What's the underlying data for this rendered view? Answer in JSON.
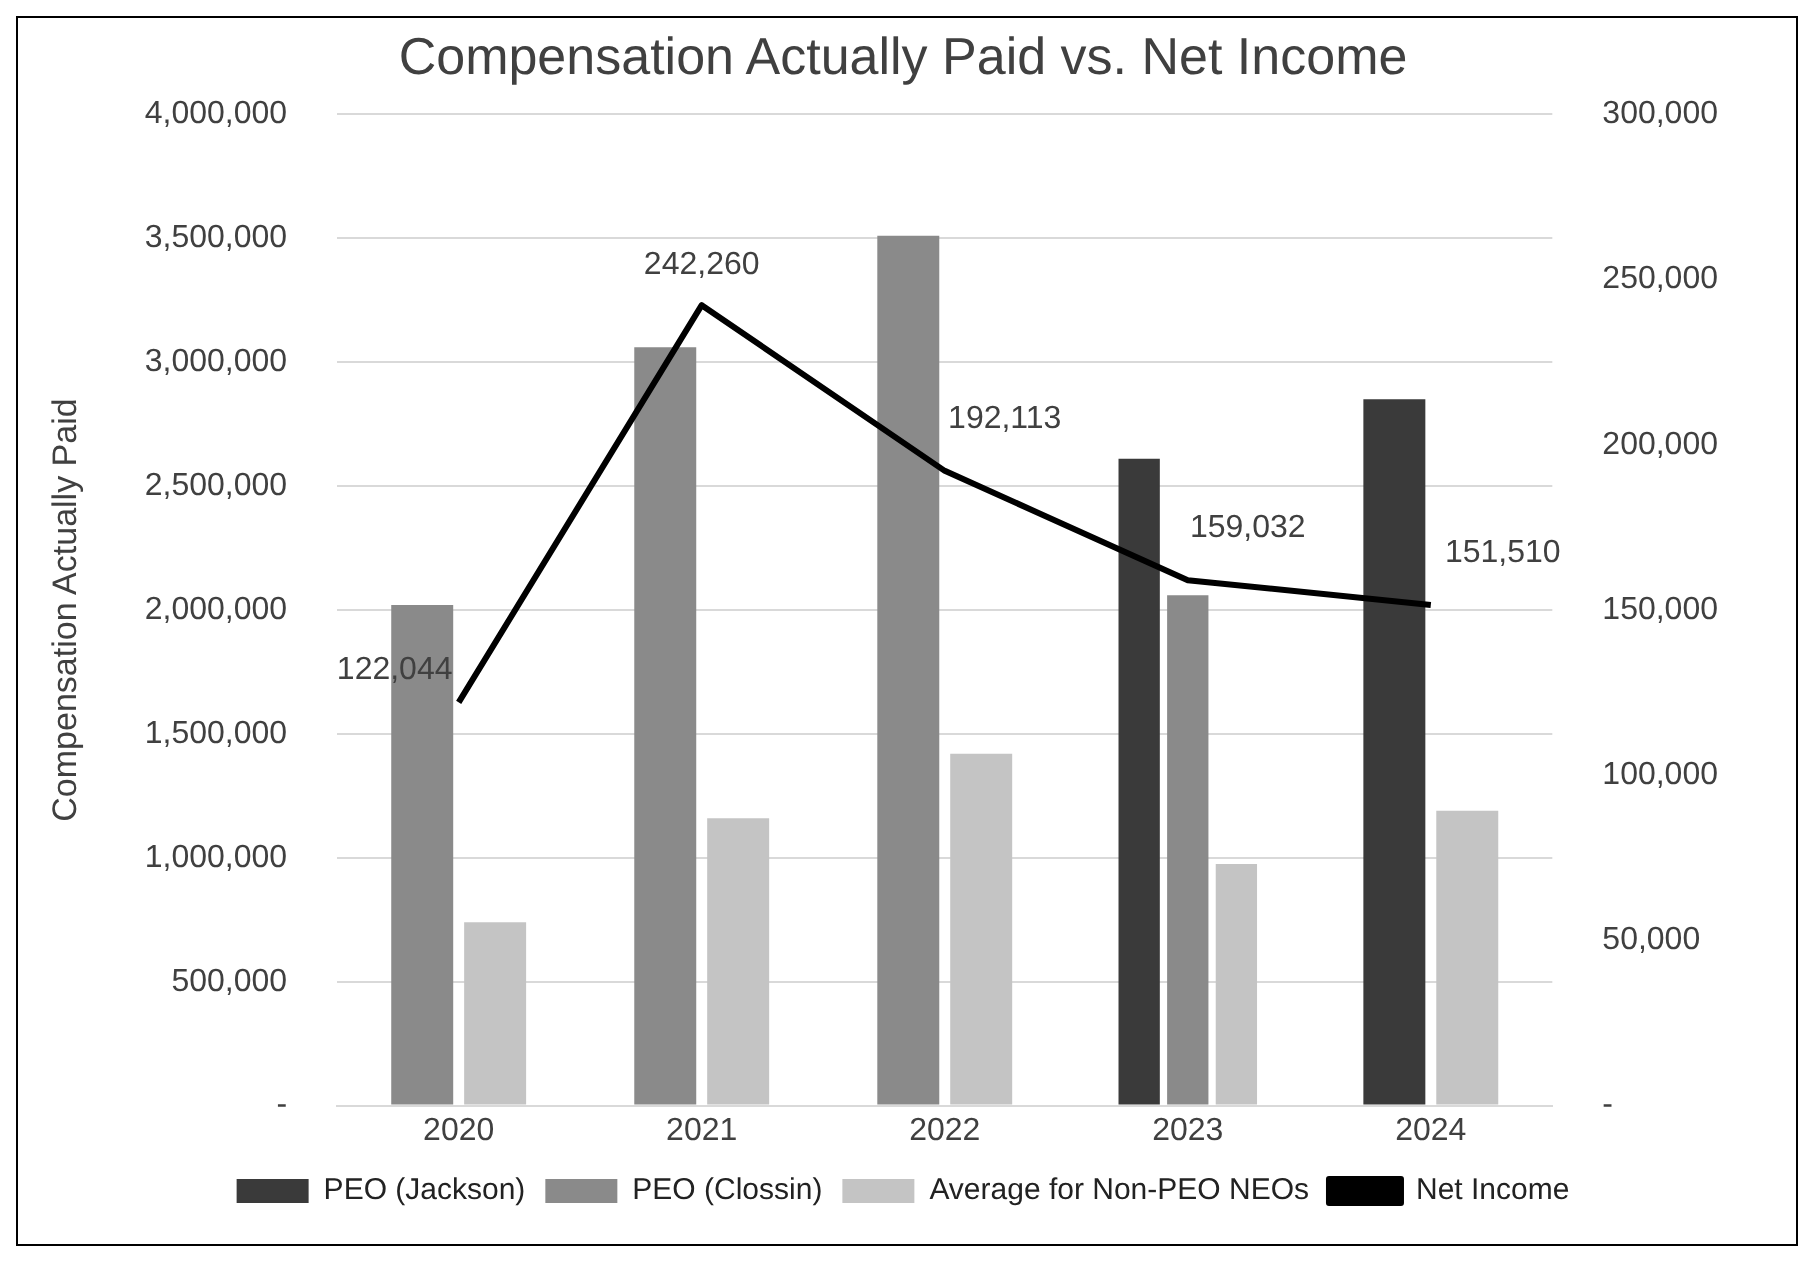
{
  "chart_data": {
    "type": "bar",
    "title": "Compensation Actually Paid vs. Net Income",
    "ylabel": "Compensation Actually Paid",
    "categories": [
      "2020",
      "2021",
      "2022",
      "2023",
      "2024"
    ],
    "series": [
      {
        "name": "PEO (Jackson)",
        "color": "#3a3a3a",
        "values": [
          null,
          null,
          null,
          2610000,
          2850000
        ]
      },
      {
        "name": "PEO (Clossin)",
        "color": "#8a8a8a",
        "values": [
          2020000,
          3060000,
          3510000,
          2060000,
          null
        ]
      },
      {
        "name": "Average for Non-PEO NEOs",
        "color": "#c4c4c4",
        "values": [
          740000,
          1160000,
          1420000,
          975000,
          1190000
        ]
      },
      {
        "name": "Net Income",
        "type": "line",
        "axis": "y2",
        "color": "#000000",
        "values": [
          122044,
          242260,
          192113,
          159032,
          151510
        ],
        "value_labels": [
          "122,044",
          "242,260",
          "192,113",
          "159,032",
          "151,510"
        ]
      }
    ],
    "ylim": [
      0,
      4000000
    ],
    "yticks": [
      {
        "value": 0,
        "label": "-"
      },
      {
        "value": 500000,
        "label": "500,000"
      },
      {
        "value": 1000000,
        "label": "1,000,000"
      },
      {
        "value": 1500000,
        "label": "1,500,000"
      },
      {
        "value": 2000000,
        "label": "2,000,000"
      },
      {
        "value": 2500000,
        "label": "2,500,000"
      },
      {
        "value": 3000000,
        "label": "3,000,000"
      },
      {
        "value": 3500000,
        "label": "3,500,000"
      },
      {
        "value": 4000000,
        "label": "4,000,000"
      }
    ],
    "y2lim": [
      0,
      300000
    ],
    "y2ticks": [
      {
        "value": 0,
        "label": "-"
      },
      {
        "value": 50000,
        "label": "50,000"
      },
      {
        "value": 100000,
        "label": "100,000"
      },
      {
        "value": 150000,
        "label": "150,000"
      },
      {
        "value": 200000,
        "label": "200,000"
      },
      {
        "value": 250000,
        "label": "250,000"
      },
      {
        "value": 300000,
        "label": "300,000"
      }
    ],
    "grid": "y",
    "legend": "bottom",
    "marker": "none",
    "line_style": "solid"
  }
}
